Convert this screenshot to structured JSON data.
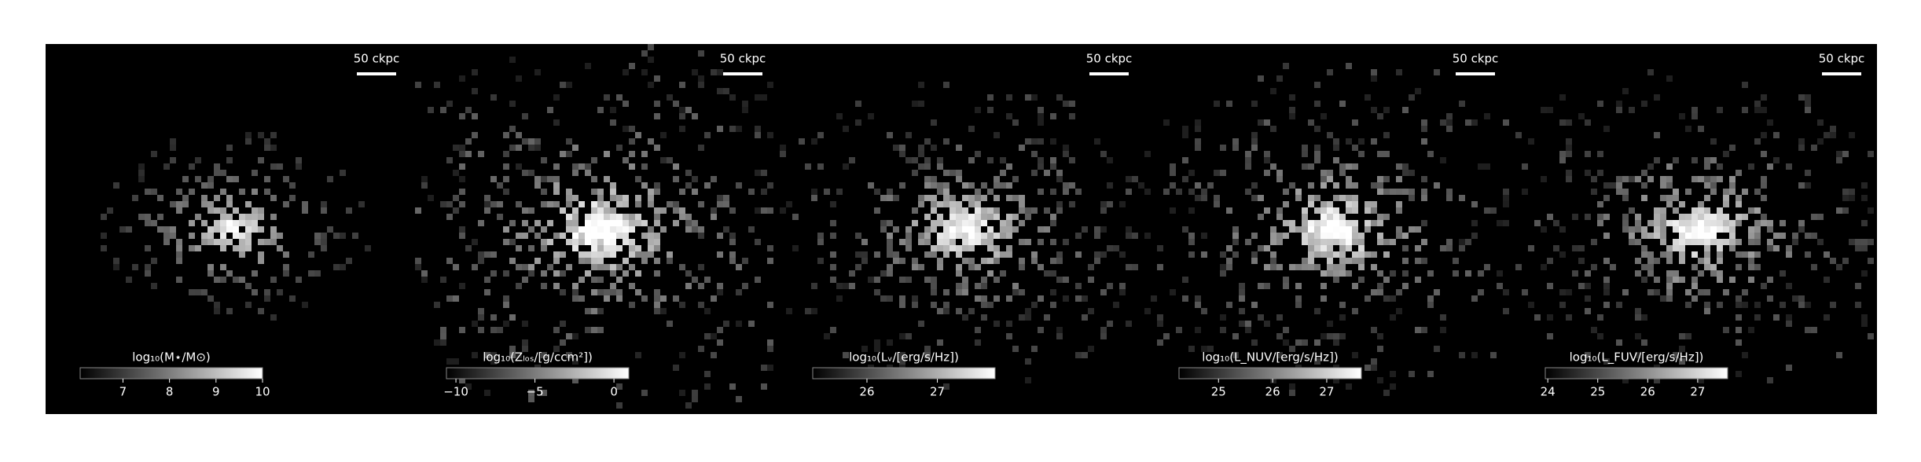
{
  "panels": [
    {
      "scale_label": "50 ckpc",
      "colorbar": {
        "label": "log₁₀(M⋆/M⊙)",
        "range": [
          6.08,
          10
        ],
        "ticks": [
          7,
          8,
          9,
          10
        ]
      }
    },
    {
      "scale_label": "50 ckpc",
      "colorbar": {
        "label": "log₁₀(Zₗₒₛ/[g/ccm²])",
        "range": [
          -10.6,
          0.94
        ],
        "ticks": [
          {
            "value": -10,
            "label": "−10"
          },
          {
            "value": -5,
            "label": "−5"
          },
          0
        ]
      }
    },
    {
      "scale_label": "50 ckpc",
      "colorbar": {
        "label": "log₁₀(Lᵥ/[erg/s/Hz])",
        "range": [
          25.23,
          27.82
        ],
        "ticks": [
          26,
          27
        ]
      }
    },
    {
      "scale_label": "50 ckpc",
      "colorbar": {
        "label": "log₁₀(L_NUV/[erg/s/Hz])",
        "range": [
          24.27,
          27.64
        ],
        "ticks": [
          25,
          26,
          27
        ]
      }
    },
    {
      "scale_label": "50 ckpc",
      "colorbar": {
        "label": "log₁₀(L_FUV/[erg/s/Hz])",
        "range": [
          23.95,
          27.6
        ],
        "ticks": [
          24,
          25,
          26,
          27
        ]
      }
    }
  ]
}
